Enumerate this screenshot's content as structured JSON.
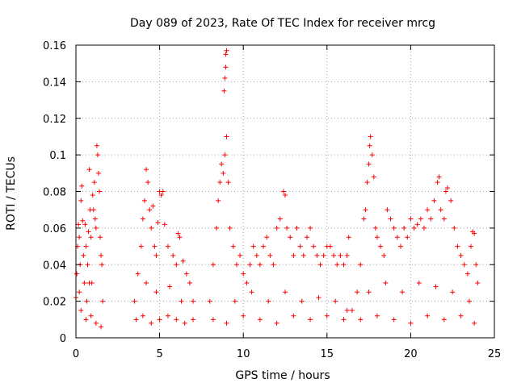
{
  "chart_data": {
    "type": "scatter",
    "title": "Day 089 of 2023, Rate Of TEC Index for receiver mrcg",
    "xlabel": "GPS time / hours",
    "ylabel": "ROTI / TECUs",
    "xlim": [
      0,
      25
    ],
    "ylim": [
      0,
      0.16
    ],
    "xticks": [
      0,
      5,
      10,
      15,
      20,
      25
    ],
    "xtick_labels": [
      "0",
      "5",
      "10",
      "15",
      "20",
      "25"
    ],
    "yticks": [
      0,
      0.02,
      0.04,
      0.06,
      0.08,
      0.1,
      0.12,
      0.14,
      0.16
    ],
    "ytick_labels": [
      "0",
      "0.02",
      "0.04",
      "0.06",
      "0.08",
      "0.1",
      "0.12",
      "0.14",
      "0.16"
    ],
    "grid": true,
    "marker": "+",
    "series": [
      {
        "color": "#ff0000",
        "points": [
          [
            0.0,
            0.022
          ],
          [
            0.05,
            0.035
          ],
          [
            0.1,
            0.05
          ],
          [
            0.15,
            0.062
          ],
          [
            0.2,
            0.055
          ],
          [
            0.25,
            0.04
          ],
          [
            0.3,
            0.075
          ],
          [
            0.35,
            0.083
          ],
          [
            0.4,
            0.064
          ],
          [
            0.45,
            0.045
          ],
          [
            0.5,
            0.03
          ],
          [
            0.55,
            0.062
          ],
          [
            0.6,
            0.05
          ],
          [
            0.65,
            0.02
          ],
          [
            0.7,
            0.04
          ],
          [
            0.75,
            0.058
          ],
          [
            0.8,
            0.092
          ],
          [
            0.85,
            0.07
          ],
          [
            0.9,
            0.055
          ],
          [
            0.95,
            0.03
          ],
          [
            1.0,
            0.078
          ],
          [
            1.05,
            0.07
          ],
          [
            1.1,
            0.085
          ],
          [
            1.15,
            0.065
          ],
          [
            1.2,
            0.06
          ],
          [
            1.25,
            0.105
          ],
          [
            1.3,
            0.1
          ],
          [
            1.35,
            0.09
          ],
          [
            1.4,
            0.08
          ],
          [
            1.45,
            0.055
          ],
          [
            1.5,
            0.045
          ],
          [
            1.55,
            0.04
          ],
          [
            1.6,
            0.02
          ],
          [
            0.3,
            0.015
          ],
          [
            0.6,
            0.01
          ],
          [
            0.9,
            0.012
          ],
          [
            1.2,
            0.008
          ],
          [
            1.5,
            0.006
          ],
          [
            0.2,
            0.025
          ],
          [
            0.8,
            0.03
          ],
          [
            3.5,
            0.02
          ],
          [
            3.7,
            0.035
          ],
          [
            3.9,
            0.05
          ],
          [
            4.0,
            0.065
          ],
          [
            4.1,
            0.075
          ],
          [
            4.2,
            0.092
          ],
          [
            4.3,
            0.085
          ],
          [
            4.4,
            0.07
          ],
          [
            4.5,
            0.06
          ],
          [
            4.6,
            0.072
          ],
          [
            4.7,
            0.05
          ],
          [
            4.8,
            0.045
          ],
          [
            4.9,
            0.063
          ],
          [
            5.0,
            0.08
          ],
          [
            5.1,
            0.078
          ],
          [
            5.2,
            0.08
          ],
          [
            5.3,
            0.062
          ],
          [
            5.5,
            0.05
          ],
          [
            5.8,
            0.045
          ],
          [
            6.0,
            0.04
          ],
          [
            6.1,
            0.057
          ],
          [
            6.2,
            0.055
          ],
          [
            6.4,
            0.042
          ],
          [
            6.6,
            0.035
          ],
          [
            6.8,
            0.03
          ],
          [
            7.0,
            0.02
          ],
          [
            3.6,
            0.01
          ],
          [
            4.0,
            0.012
          ],
          [
            4.5,
            0.008
          ],
          [
            5.0,
            0.01
          ],
          [
            5.5,
            0.012
          ],
          [
            6.0,
            0.01
          ],
          [
            6.5,
            0.008
          ],
          [
            7.0,
            0.01
          ],
          [
            4.2,
            0.03
          ],
          [
            4.8,
            0.025
          ],
          [
            5.6,
            0.028
          ],
          [
            6.3,
            0.02
          ],
          [
            8.0,
            0.02
          ],
          [
            8.2,
            0.04
          ],
          [
            8.4,
            0.06
          ],
          [
            8.5,
            0.075
          ],
          [
            8.6,
            0.085
          ],
          [
            8.7,
            0.095
          ],
          [
            8.8,
            0.09
          ],
          [
            8.9,
            0.1
          ],
          [
            9.0,
            0.11
          ],
          [
            8.85,
            0.135
          ],
          [
            8.9,
            0.142
          ],
          [
            8.95,
            0.155
          ],
          [
            9.0,
            0.157
          ],
          [
            8.95,
            0.148
          ],
          [
            9.1,
            0.085
          ],
          [
            9.2,
            0.06
          ],
          [
            9.4,
            0.05
          ],
          [
            9.6,
            0.04
          ],
          [
            9.8,
            0.045
          ],
          [
            10.0,
            0.035
          ],
          [
            10.2,
            0.03
          ],
          [
            10.4,
            0.04
          ],
          [
            10.6,
            0.05
          ],
          [
            10.8,
            0.045
          ],
          [
            11.0,
            0.04
          ],
          [
            11.2,
            0.05
          ],
          [
            11.4,
            0.055
          ],
          [
            11.6,
            0.045
          ],
          [
            11.8,
            0.04
          ],
          [
            12.0,
            0.06
          ],
          [
            12.2,
            0.065
          ],
          [
            12.4,
            0.08
          ],
          [
            12.5,
            0.078
          ],
          [
            12.6,
            0.06
          ],
          [
            12.8,
            0.055
          ],
          [
            13.0,
            0.045
          ],
          [
            13.2,
            0.06
          ],
          [
            13.4,
            0.05
          ],
          [
            13.6,
            0.045
          ],
          [
            13.8,
            0.055
          ],
          [
            14.0,
            0.06
          ],
          [
            14.2,
            0.05
          ],
          [
            14.4,
            0.045
          ],
          [
            14.6,
            0.04
          ],
          [
            14.8,
            0.045
          ],
          [
            15.0,
            0.05
          ],
          [
            15.2,
            0.05
          ],
          [
            15.4,
            0.045
          ],
          [
            15.6,
            0.04
          ],
          [
            15.8,
            0.045
          ],
          [
            16.0,
            0.04
          ],
          [
            16.2,
            0.045
          ],
          [
            16.3,
            0.055
          ],
          [
            8.2,
            0.01
          ],
          [
            9.0,
            0.008
          ],
          [
            10.0,
            0.012
          ],
          [
            11.0,
            0.01
          ],
          [
            12.0,
            0.008
          ],
          [
            13.0,
            0.012
          ],
          [
            14.0,
            0.01
          ],
          [
            15.0,
            0.012
          ],
          [
            16.0,
            0.01
          ],
          [
            9.5,
            0.02
          ],
          [
            10.5,
            0.025
          ],
          [
            11.5,
            0.02
          ],
          [
            12.5,
            0.025
          ],
          [
            13.5,
            0.02
          ],
          [
            14.5,
            0.022
          ],
          [
            15.5,
            0.02
          ],
          [
            16.2,
            0.015
          ],
          [
            16.5,
            0.015
          ],
          [
            16.8,
            0.025
          ],
          [
            17.0,
            0.04
          ],
          [
            17.2,
            0.065
          ],
          [
            17.3,
            0.07
          ],
          [
            17.4,
            0.085
          ],
          [
            17.5,
            0.095
          ],
          [
            17.55,
            0.105
          ],
          [
            17.6,
            0.11
          ],
          [
            17.7,
            0.1
          ],
          [
            17.8,
            0.088
          ],
          [
            17.9,
            0.06
          ],
          [
            18.0,
            0.055
          ],
          [
            18.2,
            0.05
          ],
          [
            18.4,
            0.045
          ],
          [
            18.6,
            0.07
          ],
          [
            18.8,
            0.065
          ],
          [
            19.0,
            0.06
          ],
          [
            19.2,
            0.055
          ],
          [
            19.4,
            0.05
          ],
          [
            19.6,
            0.06
          ],
          [
            19.8,
            0.055
          ],
          [
            20.0,
            0.065
          ],
          [
            20.2,
            0.06
          ],
          [
            20.4,
            0.062
          ],
          [
            20.6,
            0.065
          ],
          [
            20.8,
            0.06
          ],
          [
            21.0,
            0.07
          ],
          [
            21.2,
            0.065
          ],
          [
            21.4,
            0.075
          ],
          [
            21.6,
            0.085
          ],
          [
            21.7,
            0.088
          ],
          [
            21.8,
            0.07
          ],
          [
            22.0,
            0.065
          ],
          [
            22.1,
            0.08
          ],
          [
            22.2,
            0.082
          ],
          [
            22.4,
            0.075
          ],
          [
            22.6,
            0.06
          ],
          [
            22.8,
            0.05
          ],
          [
            23.0,
            0.045
          ],
          [
            23.2,
            0.04
          ],
          [
            23.4,
            0.035
          ],
          [
            23.6,
            0.05
          ],
          [
            23.7,
            0.058
          ],
          [
            23.8,
            0.057
          ],
          [
            23.9,
            0.04
          ],
          [
            24.0,
            0.03
          ],
          [
            17.0,
            0.01
          ],
          [
            18.0,
            0.012
          ],
          [
            19.0,
            0.01
          ],
          [
            20.0,
            0.008
          ],
          [
            21.0,
            0.012
          ],
          [
            22.0,
            0.01
          ],
          [
            23.0,
            0.012
          ],
          [
            23.8,
            0.008
          ],
          [
            17.5,
            0.025
          ],
          [
            18.5,
            0.03
          ],
          [
            19.5,
            0.025
          ],
          [
            20.5,
            0.03
          ],
          [
            21.5,
            0.028
          ],
          [
            22.5,
            0.025
          ],
          [
            23.5,
            0.02
          ]
        ]
      }
    ]
  }
}
